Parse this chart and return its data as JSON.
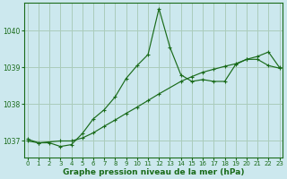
{
  "xlabel": "Graphe pression niveau de la mer (hPa)",
  "bg_color": "#cce8ee",
  "plot_bg_color": "#cce8ee",
  "line_color": "#1a6b1a",
  "grid_color": "#aaccbb",
  "x_ticks": [
    0,
    1,
    2,
    3,
    4,
    5,
    6,
    7,
    8,
    9,
    10,
    11,
    12,
    13,
    14,
    15,
    16,
    17,
    18,
    19,
    20,
    21,
    22,
    23
  ],
  "y_ticks": [
    1037,
    1038,
    1039,
    1040
  ],
  "ylim": [
    1036.55,
    1040.75
  ],
  "xlim": [
    -0.3,
    23.3
  ],
  "series1_x": [
    0,
    1,
    2,
    3,
    4,
    5,
    6,
    7,
    8,
    9,
    10,
    11,
    12,
    13,
    14,
    15,
    16,
    17,
    18,
    19,
    20,
    21,
    22,
    23
  ],
  "series1_y": [
    1037.05,
    1036.95,
    1036.95,
    1036.85,
    1036.9,
    1037.2,
    1037.6,
    1037.85,
    1038.2,
    1038.7,
    1039.05,
    1039.35,
    1040.6,
    1039.55,
    1038.8,
    1038.62,
    1038.67,
    1038.62,
    1038.62,
    1039.08,
    1039.22,
    1039.22,
    1039.05,
    1038.98
  ],
  "series2_x": [
    0,
    1,
    3,
    4,
    5,
    6,
    7,
    8,
    9,
    10,
    11,
    12,
    14,
    15,
    16,
    17,
    18,
    19,
    20,
    21,
    22,
    23
  ],
  "series2_y": [
    1037.0,
    1036.95,
    1037.0,
    1037.0,
    1037.08,
    1037.22,
    1037.4,
    1037.57,
    1037.75,
    1037.92,
    1038.1,
    1038.28,
    1038.62,
    1038.75,
    1038.87,
    1038.95,
    1039.03,
    1039.1,
    1039.22,
    1039.3,
    1039.42,
    1039.0
  ]
}
